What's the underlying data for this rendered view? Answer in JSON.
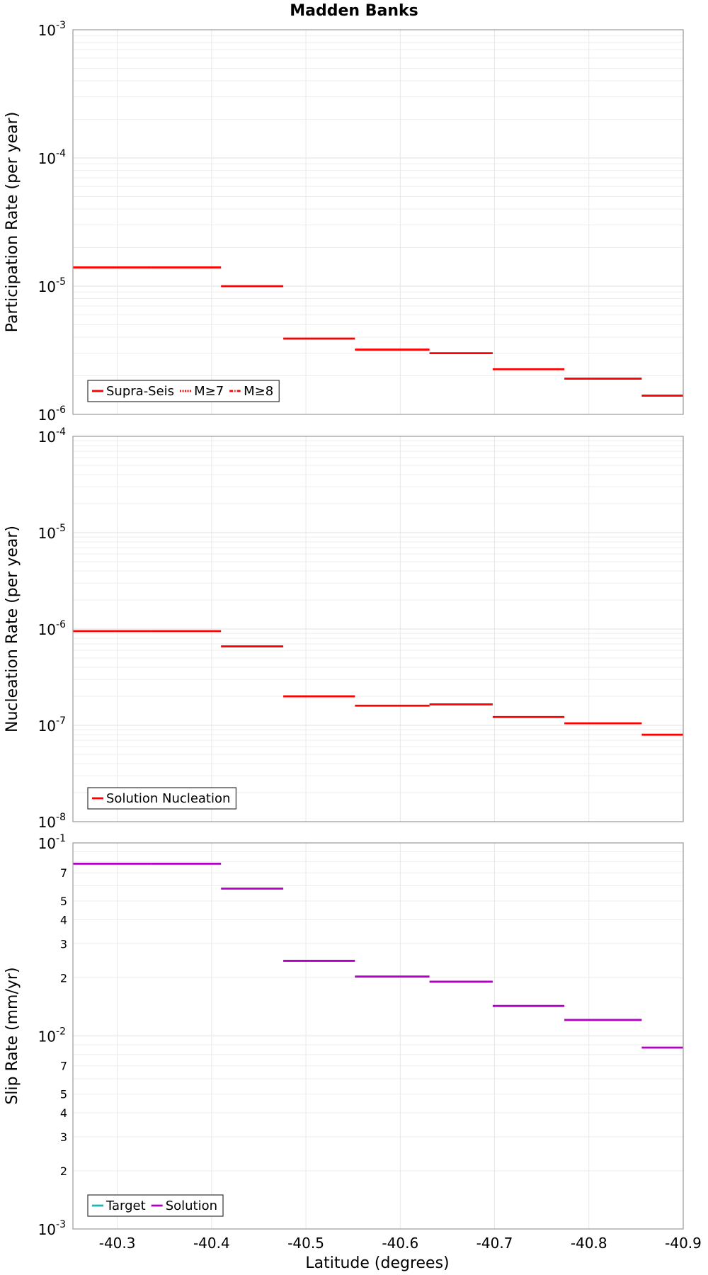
{
  "title": "Madden Banks",
  "xlabel": "Latitude (degrees)",
  "x_axis": {
    "range": [
      -40.253,
      -40.9
    ],
    "ticks": [
      -40.3,
      -40.4,
      -40.5,
      -40.6,
      -40.7,
      -40.8,
      -40.9
    ],
    "tick_labels": [
      "-40.3",
      "-40.4",
      "-40.5",
      "-40.6",
      "-40.7",
      "-40.8",
      "-40.9"
    ]
  },
  "chart_data": [
    {
      "type": "line",
      "title": "",
      "ylabel": "Participation Rate (per year)",
      "y_scale": "log",
      "ylim": [
        1e-06,
        0.001
      ],
      "y_tick_labels": [
        {
          "value": 0.001,
          "base": "10",
          "exp": "-3"
        },
        {
          "value": 0.0001,
          "base": "10",
          "exp": "-4"
        },
        {
          "value": 1e-05,
          "base": "10",
          "exp": "-5"
        },
        {
          "value": 1e-06,
          "base": "10",
          "exp": "-6"
        }
      ],
      "legend": [
        {
          "label": "Supra-Seis",
          "color": "#ff0000",
          "style": "solid"
        },
        {
          "label": "M≥7",
          "color": "#ff0000",
          "style": "dotted"
        },
        {
          "label": "M≥8",
          "color": "#ff0000",
          "style": "dashdot"
        }
      ],
      "series": [
        {
          "name": "Supra-Seis",
          "color": "#ff0000",
          "segments": [
            {
              "x": [
                -40.253,
                -40.336
              ],
              "y": 1.4e-05
            },
            {
              "x": [
                -40.336,
                -40.41
              ],
              "y": 1.4e-05
            },
            {
              "x": [
                -40.41,
                -40.476
              ],
              "y": 1e-05
            },
            {
              "x": [
                -40.476,
                -40.552
              ],
              "y": 3.9e-06
            },
            {
              "x": [
                -40.552,
                -40.631
              ],
              "y": 3.2e-06
            },
            {
              "x": [
                -40.631,
                -40.698
              ],
              "y": 3e-06
            },
            {
              "x": [
                -40.698,
                -40.774
              ],
              "y": 2.25e-06
            },
            {
              "x": [
                -40.774,
                -40.856
              ],
              "y": 1.9e-06
            },
            {
              "x": [
                -40.856,
                -40.9
              ],
              "y": 1.4e-06
            }
          ]
        }
      ]
    },
    {
      "type": "line",
      "title": "",
      "ylabel": "Nucleation Rate (per year)",
      "y_scale": "log",
      "ylim": [
        1e-08,
        0.0001
      ],
      "y_tick_labels": [
        {
          "value": 0.0001,
          "base": "10",
          "exp": "-4"
        },
        {
          "value": 1e-05,
          "base": "10",
          "exp": "-5"
        },
        {
          "value": 1e-06,
          "base": "10",
          "exp": "-6"
        },
        {
          "value": 1e-07,
          "base": "10",
          "exp": "-7"
        },
        {
          "value": 1e-08,
          "base": "10",
          "exp": "-8"
        }
      ],
      "legend": [
        {
          "label": "Solution Nucleation",
          "color": "#ff0000",
          "style": "solid"
        }
      ],
      "series": [
        {
          "name": "Solution Nucleation",
          "color": "#ff0000",
          "segments": [
            {
              "x": [
                -40.253,
                -40.336
              ],
              "y": 9.5e-07
            },
            {
              "x": [
                -40.336,
                -40.41
              ],
              "y": 9.5e-07
            },
            {
              "x": [
                -40.41,
                -40.476
              ],
              "y": 6.6e-07
            },
            {
              "x": [
                -40.476,
                -40.552
              ],
              "y": 2e-07
            },
            {
              "x": [
                -40.552,
                -40.631
              ],
              "y": 1.6e-07
            },
            {
              "x": [
                -40.631,
                -40.698
              ],
              "y": 1.65e-07
            },
            {
              "x": [
                -40.698,
                -40.774
              ],
              "y": 1.22e-07
            },
            {
              "x": [
                -40.774,
                -40.856
              ],
              "y": 1.05e-07
            },
            {
              "x": [
                -40.856,
                -40.9
              ],
              "y": 8e-08
            }
          ]
        }
      ]
    },
    {
      "type": "line",
      "title": "",
      "ylabel": "Slip Rate (mm/yr)",
      "y_scale": "log",
      "ylim": [
        0.001,
        0.1
      ],
      "y_tick_labels": [
        {
          "value": 0.1,
          "base": "10",
          "exp": "-1"
        },
        {
          "value": 0.01,
          "base": "10",
          "exp": "-2"
        },
        {
          "value": 0.001,
          "base": "10",
          "exp": "-3"
        }
      ],
      "y_minor_labels": [
        {
          "value": 0.07,
          "label": "7"
        },
        {
          "value": 0.05,
          "label": "5"
        },
        {
          "value": 0.04,
          "label": "4"
        },
        {
          "value": 0.03,
          "label": "3"
        },
        {
          "value": 0.02,
          "label": "2"
        },
        {
          "value": 0.007,
          "label": "7"
        },
        {
          "value": 0.005,
          "label": "5"
        },
        {
          "value": 0.004,
          "label": "4"
        },
        {
          "value": 0.003,
          "label": "3"
        },
        {
          "value": 0.002,
          "label": "2"
        }
      ],
      "legend": [
        {
          "label": "Target",
          "color": "#1fb5b0",
          "style": "solid"
        },
        {
          "label": "Solution",
          "color": "#b000c0",
          "style": "solid"
        }
      ],
      "series": [
        {
          "name": "Solution",
          "color": "#b000c0",
          "segments": [
            {
              "x": [
                -40.253,
                -40.336
              ],
              "y": 0.078
            },
            {
              "x": [
                -40.336,
                -40.41
              ],
              "y": 0.078
            },
            {
              "x": [
                -40.41,
                -40.476
              ],
              "y": 0.058
            },
            {
              "x": [
                -40.476,
                -40.552
              ],
              "y": 0.0245
            },
            {
              "x": [
                -40.552,
                -40.631
              ],
              "y": 0.0203
            },
            {
              "x": [
                -40.631,
                -40.698
              ],
              "y": 0.0191
            },
            {
              "x": [
                -40.698,
                -40.774
              ],
              "y": 0.0143
            },
            {
              "x": [
                -40.774,
                -40.856
              ],
              "y": 0.0121
            },
            {
              "x": [
                -40.856,
                -40.9
              ],
              "y": 0.0087
            }
          ]
        }
      ]
    }
  ]
}
